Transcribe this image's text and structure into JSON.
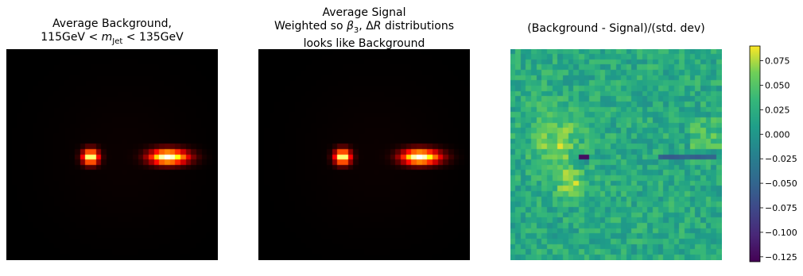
{
  "chart_data": [
    {
      "type": "heatmap",
      "title_lines": [
        "Average Background,",
        "115GeV < m_Jet < 135GeV"
      ],
      "grid": [
        40,
        40
      ],
      "colormap": "hot",
      "blobs": [
        {
          "row": 20,
          "col": 15,
          "peak": 1.0
        },
        {
          "row": 20,
          "col": 30,
          "peak": 1.0
        }
      ],
      "xticks": [],
      "yticks": []
    },
    {
      "type": "heatmap",
      "title_lines": [
        "Average Signal",
        "Weighted so β3, ΔR distributions",
        "looks like Background"
      ],
      "grid": [
        40,
        40
      ],
      "colormap": "hot",
      "blobs": [
        {
          "row": 20,
          "col": 15,
          "peak": 1.0
        },
        {
          "row": 20,
          "col": 30,
          "peak": 1.0
        }
      ],
      "xticks": [],
      "yticks": []
    },
    {
      "type": "heatmap",
      "title_lines": [
        "(Background - Signal)/(std. dev)"
      ],
      "grid": [
        40,
        40
      ],
      "colormap": "viridis",
      "vmin": -0.13,
      "vmax": 0.09,
      "colorbar_ticks": [
        "0.075",
        "0.050",
        "0.025",
        "0.000",
        "−0.025",
        "−0.050",
        "−0.075",
        "−0.100",
        "−0.125"
      ],
      "colorbar_tick_values": [
        0.075,
        0.05,
        0.025,
        0.0,
        -0.025,
        -0.05,
        -0.075,
        -0.1,
        -0.125
      ]
    }
  ]
}
